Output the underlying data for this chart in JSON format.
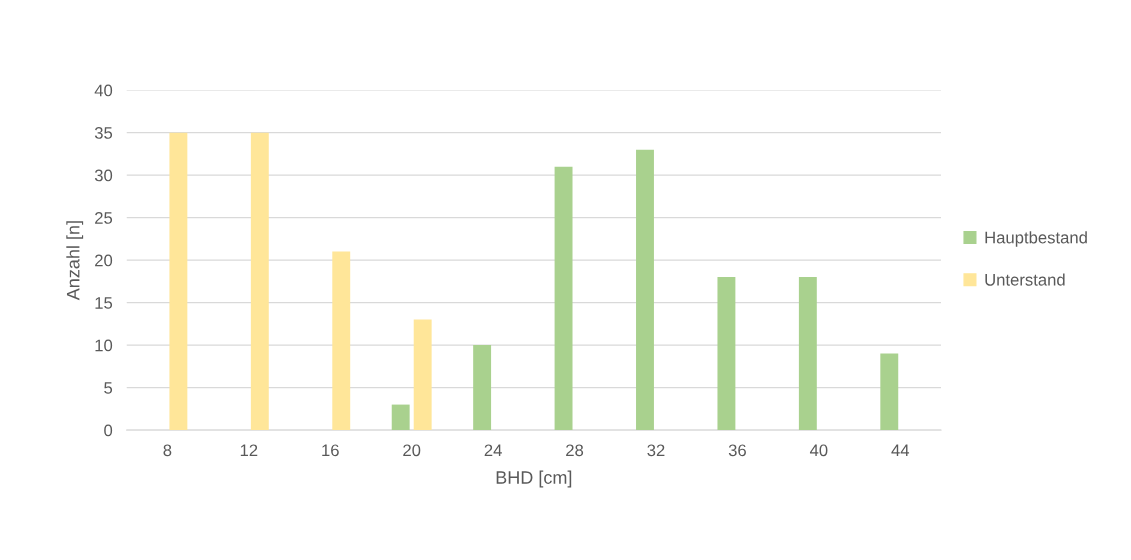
{
  "chart_data": {
    "type": "bar",
    "xlabel": "BHD [cm]",
    "ylabel": "Anzahl [n]",
    "categories": [
      "8",
      "12",
      "16",
      "20",
      "24",
      "28",
      "32",
      "36",
      "40",
      "44"
    ],
    "series": [
      {
        "name": "Hauptbestand",
        "color": "#a9d18e",
        "values": [
          null,
          null,
          null,
          3,
          10,
          31,
          33,
          18,
          18,
          9
        ]
      },
      {
        "name": "Unterstand",
        "color": "#ffe699",
        "values": [
          35,
          35,
          21,
          13,
          null,
          null,
          null,
          null,
          null,
          null
        ]
      }
    ],
    "ylim": [
      0,
      40
    ],
    "yticks": [
      0,
      5,
      10,
      15,
      20,
      25,
      30,
      35,
      40
    ],
    "grid": "y",
    "legend": "right"
  }
}
